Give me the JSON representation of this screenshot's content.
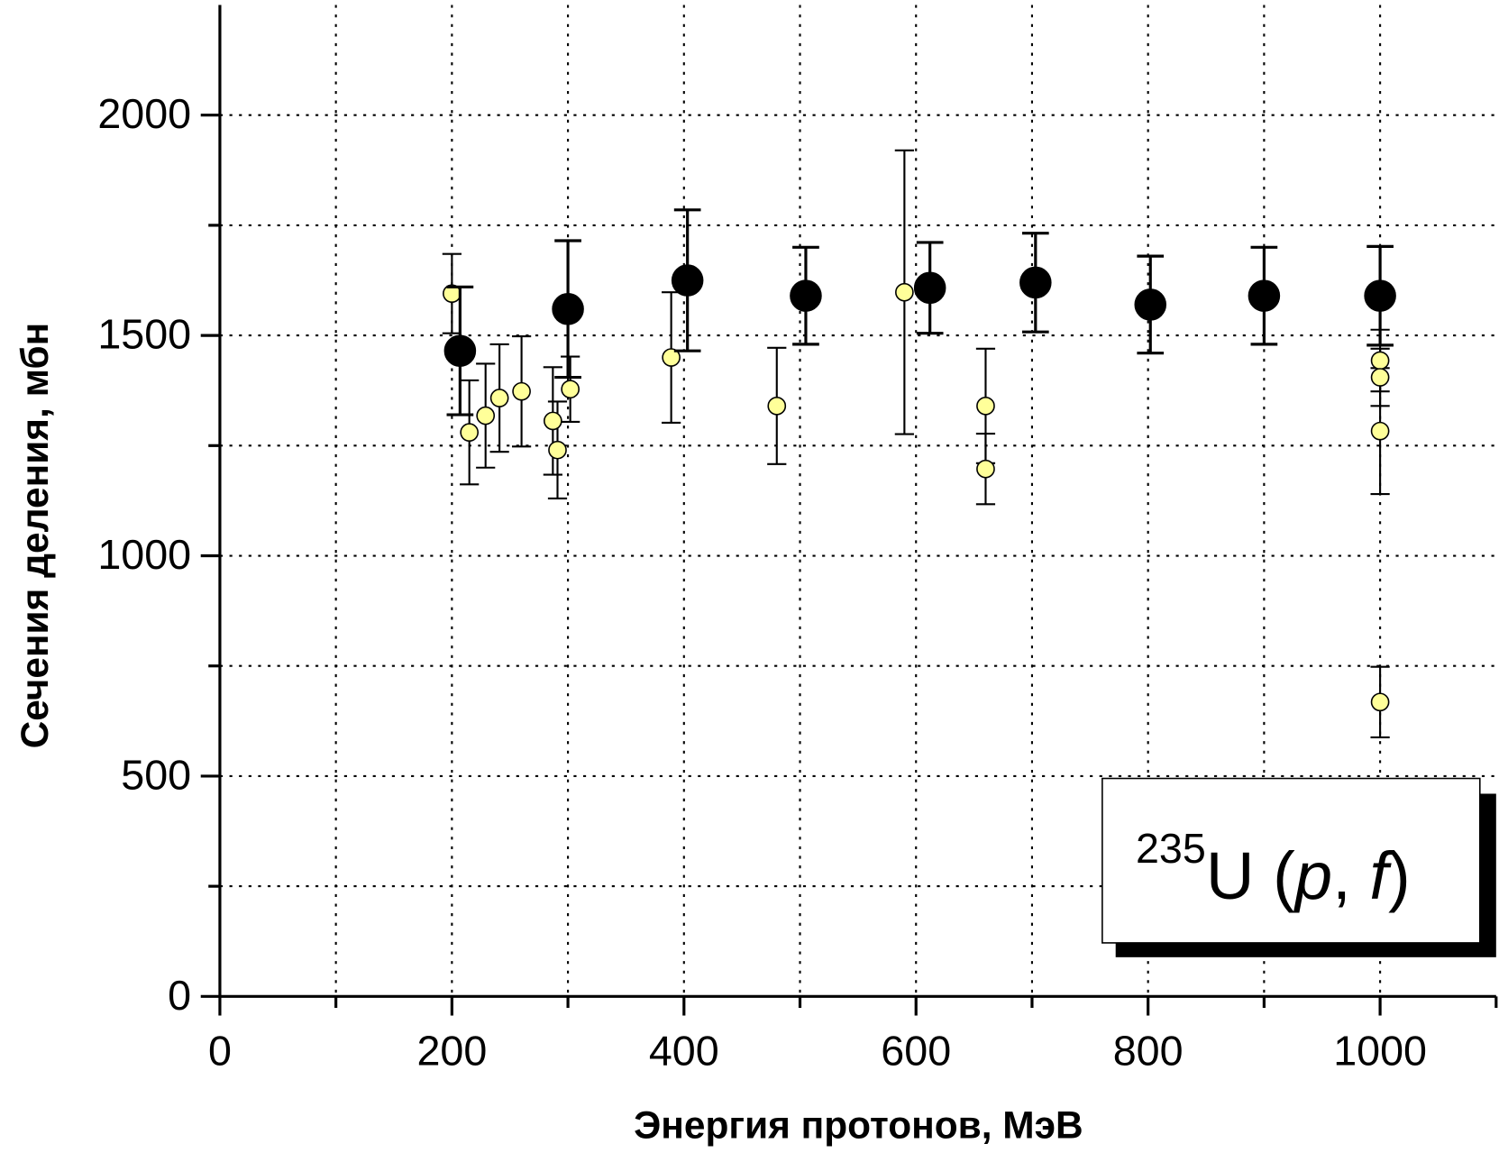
{
  "chart_data": {
    "type": "scatter",
    "xlabel": "Энергия протонов, МэВ",
    "ylabel": "Сечения деления, мбн",
    "annotation": [
      "235",
      "U (",
      "p",
      ", ",
      "f",
      ")"
    ],
    "xlim": [
      0,
      1100
    ],
    "ylim": [
      0,
      2250
    ],
    "xticks": [
      0,
      200,
      400,
      600,
      800,
      1000
    ],
    "xticks_minor": [
      100,
      300,
      500,
      700,
      900,
      1100
    ],
    "yticks": [
      0,
      500,
      1000,
      1500,
      2000
    ],
    "yticks_minor": [
      250,
      750,
      1250,
      1750
    ],
    "grid": true,
    "series": [
      {
        "color": "#ffff99",
        "x": [
          200,
          215,
          229,
          241,
          260,
          287,
          291,
          302,
          389,
          480,
          590,
          660,
          660,
          1000,
          1000,
          1000,
          1000
        ],
        "values": [
          1595,
          1280,
          1318,
          1358,
          1373,
          1306,
          1240,
          1378,
          1450,
          1340,
          1598,
          1340,
          1197,
          1443,
          1405,
          1283,
          668
        ],
        "errors": [
          90,
          118,
          118,
          122,
          125,
          122,
          110,
          74,
          148,
          132,
          322,
          130,
          80,
          70,
          65,
          143,
          80
        ]
      },
      {
        "color": "#000000",
        "x": [
          207,
          300,
          403,
          505,
          612,
          703,
          802,
          900,
          1000
        ],
        "values": [
          1465,
          1560,
          1625,
          1590,
          1608,
          1620,
          1570,
          1590,
          1590
        ],
        "errors": [
          145,
          155,
          160,
          110,
          103,
          112,
          110,
          110,
          112
        ]
      }
    ]
  }
}
